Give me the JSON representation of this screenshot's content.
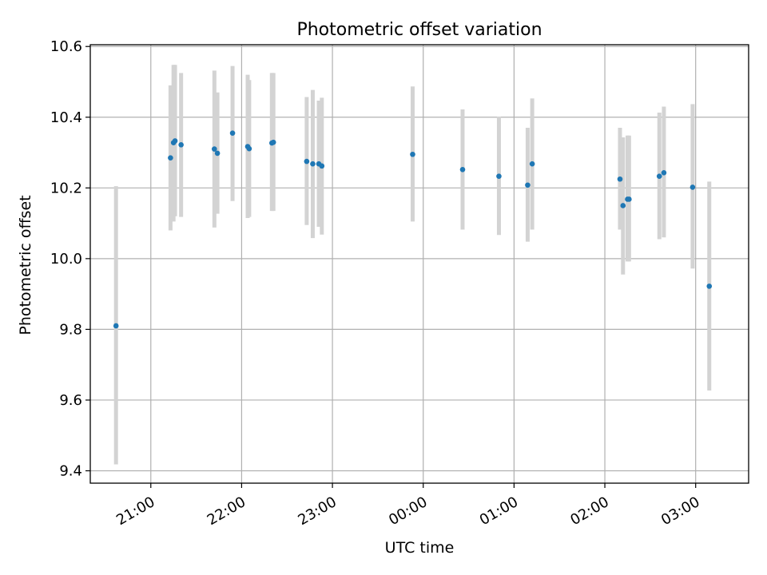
{
  "chart_data": {
    "type": "scatter",
    "title": "Photometric offset variation",
    "xlabel": "UTC time",
    "ylabel": "Photometric offset",
    "x_axis_type": "time",
    "x_start_date": "2024-01-01",
    "xlim": [
      "2024-01-01T20:20",
      "2024-01-02T03:35"
    ],
    "ylim": [
      9.365,
      10.605
    ],
    "grid": true,
    "marker_color": "#1f77b4",
    "errorbar_color": "#d3d3d3",
    "x_ticks": [
      {
        "time": "2024-01-01T21:00",
        "label": "21:00"
      },
      {
        "time": "2024-01-01T22:00",
        "label": "22:00"
      },
      {
        "time": "2024-01-01T23:00",
        "label": "23:00"
      },
      {
        "time": "2024-01-02T00:00",
        "label": "00:00"
      },
      {
        "time": "2024-01-02T01:00",
        "label": "01:00"
      },
      {
        "time": "2024-01-02T02:00",
        "label": "02:00"
      },
      {
        "time": "2024-01-02T03:00",
        "label": "03:00"
      }
    ],
    "y_ticks": [
      {
        "value": 9.4,
        "label": "9.4"
      },
      {
        "value": 9.6,
        "label": "9.6"
      },
      {
        "value": 9.8,
        "label": "9.8"
      },
      {
        "value": 10.0,
        "label": "10.0"
      },
      {
        "value": 10.2,
        "label": "10.2"
      },
      {
        "value": 10.4,
        "label": "10.4"
      },
      {
        "value": 10.6,
        "label": "10.6"
      }
    ],
    "points": [
      {
        "x": "2024-01-01T20:37",
        "y": 9.81,
        "err_low": 9.418,
        "err_high": 10.205
      },
      {
        "x": "2024-01-01T21:13",
        "y": 10.285,
        "err_low": 10.08,
        "err_high": 10.49
      },
      {
        "x": "2024-01-01T21:15",
        "y": 10.328,
        "err_low": 10.105,
        "err_high": 10.548
      },
      {
        "x": "2024-01-01T21:16",
        "y": 10.333,
        "err_low": 10.12,
        "err_high": 10.548
      },
      {
        "x": "2024-01-01T21:20",
        "y": 10.322,
        "err_low": 10.118,
        "err_high": 10.525
      },
      {
        "x": "2024-01-01T21:42",
        "y": 10.31,
        "err_low": 10.088,
        "err_high": 10.532
      },
      {
        "x": "2024-01-01T21:44",
        "y": 10.298,
        "err_low": 10.127,
        "err_high": 10.47
      },
      {
        "x": "2024-01-01T21:54",
        "y": 10.355,
        "err_low": 10.163,
        "err_high": 10.545
      },
      {
        "x": "2024-01-01T22:04",
        "y": 10.317,
        "err_low": 10.115,
        "err_high": 10.52
      },
      {
        "x": "2024-01-01T22:05",
        "y": 10.311,
        "err_low": 10.118,
        "err_high": 10.505
      },
      {
        "x": "2024-01-01T22:20",
        "y": 10.327,
        "err_low": 10.135,
        "err_high": 10.525
      },
      {
        "x": "2024-01-01T22:21",
        "y": 10.329,
        "err_low": 10.135,
        "err_high": 10.525
      },
      {
        "x": "2024-01-01T22:43",
        "y": 10.275,
        "err_low": 10.095,
        "err_high": 10.457
      },
      {
        "x": "2024-01-01T22:47",
        "y": 10.268,
        "err_low": 10.058,
        "err_high": 10.477
      },
      {
        "x": "2024-01-01T22:51",
        "y": 10.268,
        "err_low": 10.09,
        "err_high": 10.447
      },
      {
        "x": "2024-01-01T22:53",
        "y": 10.262,
        "err_low": 10.068,
        "err_high": 10.455
      },
      {
        "x": "2024-01-01T23:53",
        "y": 10.295,
        "err_low": 10.105,
        "err_high": 10.487
      },
      {
        "x": "2024-01-02T00:26",
        "y": 10.252,
        "err_low": 10.082,
        "err_high": 10.422
      },
      {
        "x": "2024-01-02T00:50",
        "y": 10.233,
        "err_low": 10.067,
        "err_high": 10.402
      },
      {
        "x": "2024-01-02T01:09",
        "y": 10.208,
        "err_low": 10.048,
        "err_high": 10.37
      },
      {
        "x": "2024-01-02T01:12",
        "y": 10.268,
        "err_low": 10.082,
        "err_high": 10.453
      },
      {
        "x": "2024-01-02T02:10",
        "y": 10.225,
        "err_low": 10.082,
        "err_high": 10.37
      },
      {
        "x": "2024-01-02T02:12",
        "y": 10.15,
        "err_low": 9.955,
        "err_high": 10.343
      },
      {
        "x": "2024-01-02T02:15",
        "y": 10.168,
        "err_low": 9.992,
        "err_high": 10.348
      },
      {
        "x": "2024-01-02T02:16",
        "y": 10.168,
        "err_low": 9.992,
        "err_high": 10.348
      },
      {
        "x": "2024-01-02T02:36",
        "y": 10.233,
        "err_low": 10.055,
        "err_high": 10.413
      },
      {
        "x": "2024-01-02T02:39",
        "y": 10.243,
        "err_low": 10.06,
        "err_high": 10.43
      },
      {
        "x": "2024-01-02T02:58",
        "y": 10.202,
        "err_low": 9.972,
        "err_high": 10.437
      },
      {
        "x": "2024-01-02T03:09",
        "y": 9.922,
        "err_low": 9.627,
        "err_high": 10.218
      }
    ]
  }
}
